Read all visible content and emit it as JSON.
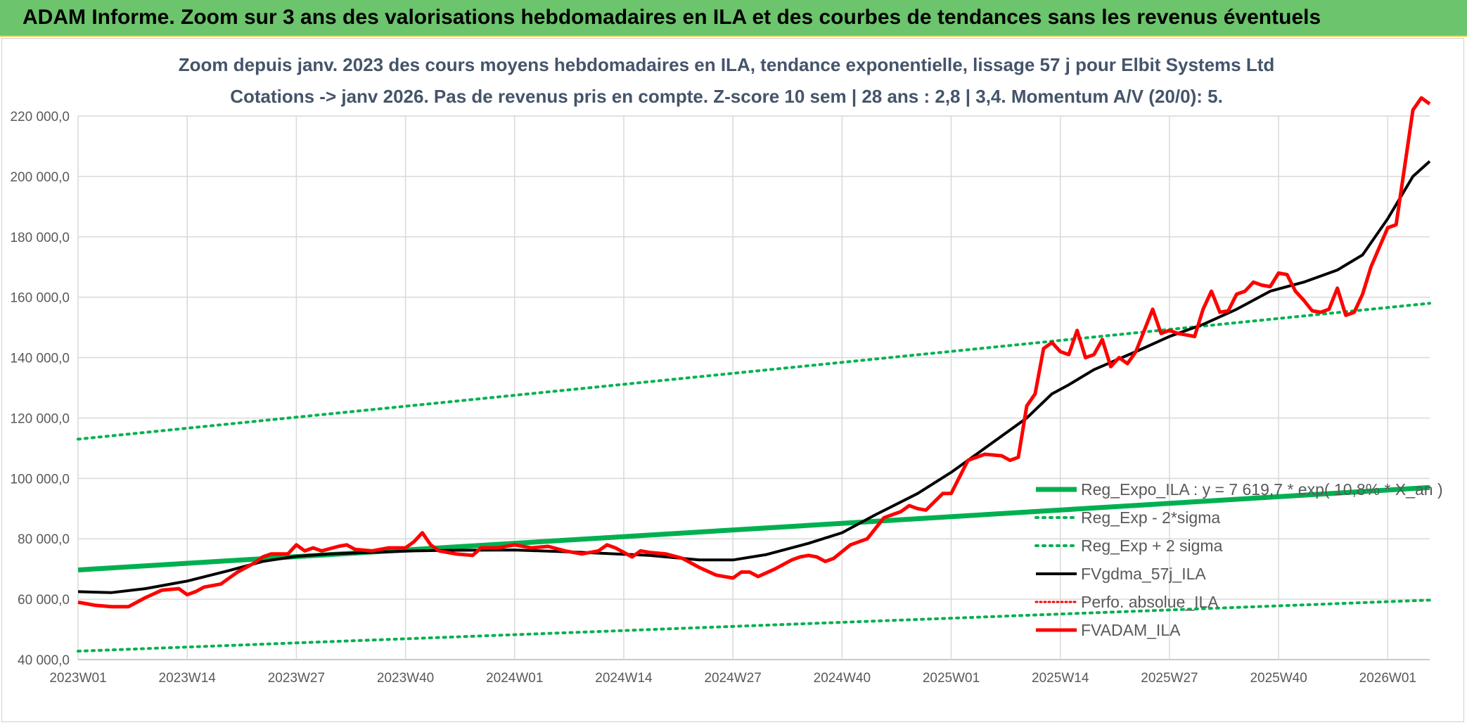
{
  "banner": {
    "title": "ADAM Informe. Zoom sur 3 ans des valorisations hebdomadaires en ILA et des courbes de tendances sans les revenus éventuels"
  },
  "colors": {
    "banner_bg": "#6cc46c",
    "reg_green": "#00b050",
    "ma_black": "#000000",
    "price_red": "#ff0000",
    "title_grey": "#44546a"
  },
  "chart_data": {
    "type": "line",
    "title_line1": "Zoom depuis janv. 2023 des cours moyens hebdomadaires en ILA, tendance exponentielle, lissage 57 j pour Elbit Systems Ltd",
    "title_line2": "Cotations -> janv 2026. Pas de revenus pris en compte. Z-score 10 sem | 28 ans : 2,8 | 3,4. Momentum A/V (20/0): 5.",
    "y_ticks": [
      "40 000,0",
      "60 000,0",
      "80 000,0",
      "100 000,0",
      "120 000,0",
      "140 000,0",
      "160 000,0",
      "180 000,0",
      "200 000,0",
      "220 000,0"
    ],
    "y_tick_values": [
      40000,
      60000,
      80000,
      100000,
      120000,
      140000,
      160000,
      180000,
      200000,
      220000
    ],
    "ylim": [
      40000,
      220000
    ],
    "x_ticks": [
      "2023W01",
      "2023W14",
      "2023W27",
      "2023W40",
      "2024W01",
      "2024W14",
      "2024W27",
      "2024W40",
      "2025W01",
      "2025W14",
      "2025W27",
      "2025W40",
      "2026W01"
    ],
    "x_tick_weeks": [
      0,
      13,
      26,
      39,
      52,
      65,
      78,
      91,
      104,
      117,
      130,
      143,
      156
    ],
    "x_range_weeks": [
      0,
      161
    ],
    "legend": [
      {
        "key": "reg_expo",
        "label": "Reg_Expo_ILA : y = 7 619,7 * exp( 10,8% * X_an )"
      },
      {
        "key": "reg_minus",
        "label": "Reg_Exp - 2*sigma"
      },
      {
        "key": "reg_plus",
        "label": "Reg_Exp + 2 sigma"
      },
      {
        "key": "ma",
        "label": "FVgdma_57j_ILA"
      },
      {
        "key": "perfo",
        "label": "Perfo. absolue_ILA"
      },
      {
        "key": "price",
        "label": "FVADAM_ILA"
      }
    ],
    "series": {
      "reg_expo": {
        "weeks": [
          0,
          161
        ],
        "values": [
          69700,
          97000
        ]
      },
      "reg_minus": {
        "weeks": [
          0,
          161
        ],
        "values": [
          42800,
          59700
        ]
      },
      "reg_plus": {
        "weeks": [
          0,
          161
        ],
        "values": [
          113000,
          158000
        ]
      },
      "ma": {
        "weeks": [
          0,
          4,
          8,
          13,
          18,
          22,
          26,
          30,
          35,
          40,
          45,
          52,
          60,
          68,
          74,
          78,
          82,
          87,
          91,
          95,
          100,
          104,
          108,
          113,
          116,
          118,
          121,
          126,
          130,
          134,
          138,
          142,
          146,
          150,
          153,
          156,
          159,
          161
        ],
        "values": [
          62500,
          62200,
          63500,
          66000,
          69500,
          72500,
          74200,
          75000,
          75500,
          76000,
          76200,
          76300,
          75500,
          74500,
          73000,
          73000,
          74800,
          78500,
          82000,
          88000,
          95000,
          102000,
          110000,
          120000,
          128000,
          131000,
          136000,
          142000,
          147000,
          151000,
          156000,
          162000,
          165000,
          169000,
          174000,
          186000,
          200000,
          205000
        ]
      },
      "price": {
        "weeks": [
          0,
          2,
          4,
          6,
          8,
          10,
          12,
          13,
          14,
          15,
          17,
          19,
          21,
          22,
          23,
          25,
          26,
          27,
          28,
          29,
          31,
          32,
          33,
          35,
          37,
          39,
          40,
          41,
          42,
          43,
          45,
          47,
          48,
          50,
          52,
          54,
          56,
          58,
          60,
          62,
          63,
          64,
          65,
          66,
          67,
          68,
          70,
          72,
          74,
          76,
          77,
          78,
          79,
          80,
          81,
          83,
          85,
          86,
          87,
          88,
          89,
          90,
          92,
          94,
          96,
          98,
          99,
          100,
          101,
          103,
          104,
          106,
          108,
          110,
          111,
          112,
          113,
          114,
          115,
          116,
          117,
          118,
          119,
          120,
          121,
          122,
          123,
          124,
          125,
          126,
          127,
          128,
          129,
          130,
          131,
          132,
          133,
          134,
          135,
          136,
          137,
          138,
          139,
          140,
          141,
          142,
          143,
          144,
          145,
          146,
          147,
          148,
          149,
          150,
          151,
          152,
          153,
          154,
          156,
          157,
          158,
          159,
          160,
          161
        ],
        "values": [
          59000,
          58000,
          57500,
          57500,
          60500,
          63000,
          63500,
          61500,
          62500,
          64000,
          65000,
          69000,
          72000,
          74000,
          75000,
          75000,
          78000,
          76000,
          77000,
          76000,
          77500,
          78000,
          76500,
          76000,
          77000,
          77000,
          79000,
          82000,
          78000,
          76000,
          75000,
          74500,
          77000,
          77000,
          78000,
          77000,
          77500,
          76000,
          75000,
          76000,
          78000,
          77000,
          75500,
          74000,
          76000,
          75500,
          75000,
          73500,
          70500,
          68000,
          67500,
          67000,
          69000,
          69000,
          67500,
          70000,
          73000,
          74000,
          74500,
          74000,
          72500,
          73500,
          78000,
          80000,
          87000,
          89000,
          91000,
          90000,
          89500,
          95000,
          95000,
          106000,
          108000,
          107500,
          106000,
          107000,
          124000,
          128000,
          143000,
          145000,
          142000,
          141000,
          149000,
          140000,
          141000,
          146000,
          137000,
          140000,
          138000,
          142000,
          149000,
          156000,
          148000,
          149000,
          148000,
          147500,
          147000,
          156000,
          162000,
          155000,
          155500,
          161000,
          162000,
          165000,
          164000,
          163500,
          168000,
          167500,
          162000,
          159000,
          155500,
          155000,
          156000,
          163000,
          154000,
          155000,
          161000,
          170000,
          183000,
          184000,
          203000,
          222000,
          226000,
          224000
        ]
      }
    }
  }
}
